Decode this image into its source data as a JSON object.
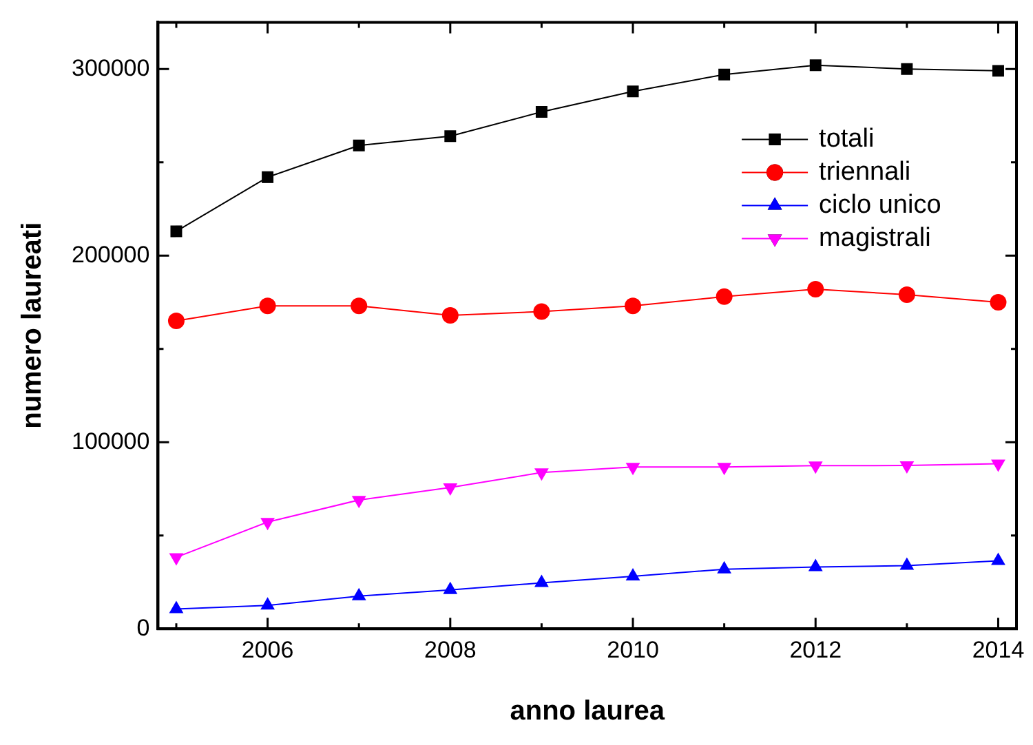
{
  "chart_data": {
    "type": "line",
    "xlabel": "anno laurea",
    "ylabel": "numero laureati",
    "x": [
      2005,
      2006,
      2007,
      2008,
      2009,
      2010,
      2011,
      2012,
      2013,
      2014
    ],
    "series": [
      {
        "name": "totali",
        "color": "#000000",
        "marker": "square",
        "values": [
          213000,
          242000,
          259000,
          264000,
          277000,
          288000,
          297000,
          302000,
          300000,
          299000
        ]
      },
      {
        "name": "triennali",
        "color": "#ff0000",
        "marker": "circle",
        "values": [
          165000,
          173000,
          173000,
          168000,
          170000,
          173000,
          178000,
          182000,
          179000,
          175000
        ]
      },
      {
        "name": "ciclo unico",
        "color": "#0000ff",
        "marker": "triangle",
        "values": [
          10600,
          12500,
          17500,
          20800,
          24600,
          28100,
          31900,
          33100,
          33800,
          36400
        ]
      },
      {
        "name": "magistrali",
        "color": "#ff00ff",
        "marker": "triangle-down",
        "values": [
          38300,
          57200,
          69000,
          75700,
          83700,
          86700,
          86700,
          87400,
          87500,
          88400
        ]
      }
    ],
    "xlim": [
      2004.8,
      2014.2
    ],
    "xticks": [
      {
        "value": 2005,
        "label": null
      },
      2006,
      {
        "value": 2007,
        "label": null
      },
      2008,
      {
        "value": 2009,
        "label": null
      },
      2010,
      {
        "value": 2011,
        "label": null
      },
      2012,
      {
        "value": 2013,
        "label": null
      },
      2014
    ],
    "ylim": [
      0,
      325000
    ],
    "yticks": [
      0,
      {
        "value": 50000,
        "label": null
      },
      100000,
      {
        "value": 150000,
        "label": null
      },
      200000,
      {
        "value": 250000,
        "label": null
      },
      300000
    ],
    "legend": "top right",
    "grid": false,
    "line_style": "solid"
  }
}
